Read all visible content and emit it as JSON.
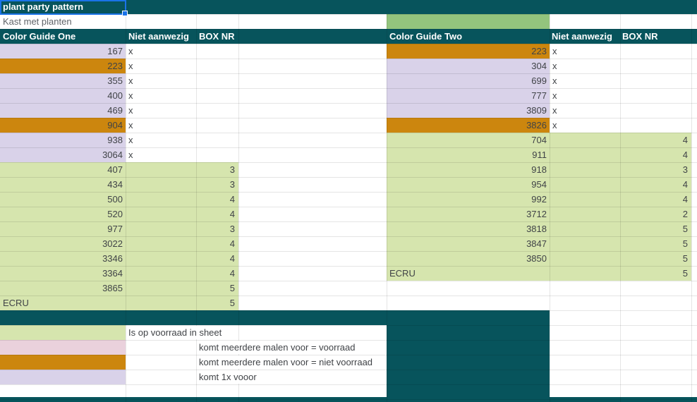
{
  "sheet": {
    "title_cell": "plant party pattern",
    "subtitle_cell": "Kast met planten"
  },
  "tables": [
    {
      "title": "Color Guide One",
      "col_absent": "Niet aanwezig",
      "col_box": "BOX NR",
      "rows": [
        {
          "code": "167",
          "swatch": "lavender",
          "absent": "x",
          "box": ""
        },
        {
          "code": "223",
          "swatch": "orange",
          "absent": "x",
          "box": ""
        },
        {
          "code": "355",
          "swatch": "lavender",
          "absent": "x",
          "box": ""
        },
        {
          "code": "400",
          "swatch": "lavender",
          "absent": "x",
          "box": ""
        },
        {
          "code": "469",
          "swatch": "lavender",
          "absent": "x",
          "box": ""
        },
        {
          "code": "904",
          "swatch": "orange",
          "absent": "x",
          "box": ""
        },
        {
          "code": "938",
          "swatch": "lavender",
          "absent": "x",
          "box": ""
        },
        {
          "code": "3064",
          "swatch": "lavender",
          "absent": "x",
          "box": ""
        },
        {
          "code": "407",
          "swatch": "green",
          "absent": "",
          "box": "3"
        },
        {
          "code": "434",
          "swatch": "green",
          "absent": "",
          "box": "3"
        },
        {
          "code": "500",
          "swatch": "green",
          "absent": "",
          "box": "4"
        },
        {
          "code": "520",
          "swatch": "green",
          "absent": "",
          "box": "4"
        },
        {
          "code": "977",
          "swatch": "green",
          "absent": "",
          "box": "3"
        },
        {
          "code": "3022",
          "swatch": "green",
          "absent": "",
          "box": "4"
        },
        {
          "code": "3346",
          "swatch": "green",
          "absent": "",
          "box": "4"
        },
        {
          "code": "3364",
          "swatch": "green",
          "absent": "",
          "box": "4"
        },
        {
          "code": "3865",
          "swatch": "green",
          "absent": "",
          "box": "5"
        },
        {
          "code": "ECRU",
          "swatch": "green",
          "absent": "",
          "box": "5"
        }
      ]
    },
    {
      "title": "Color Guide Two",
      "col_absent": "Niet aanwezig",
      "col_box": "BOX NR",
      "rows": [
        {
          "code": "223",
          "swatch": "orange",
          "absent": "x",
          "box": ""
        },
        {
          "code": "304",
          "swatch": "lavender",
          "absent": "x",
          "box": ""
        },
        {
          "code": "699",
          "swatch": "lavender",
          "absent": "x",
          "box": ""
        },
        {
          "code": "777",
          "swatch": "lavender",
          "absent": "x",
          "box": ""
        },
        {
          "code": "3809",
          "swatch": "lavender",
          "absent": "x",
          "box": ""
        },
        {
          "code": "3826",
          "swatch": "orange",
          "absent": "x",
          "box": ""
        },
        {
          "code": "704",
          "swatch": "green",
          "absent": "",
          "box": "4"
        },
        {
          "code": "911",
          "swatch": "green",
          "absent": "",
          "box": "4"
        },
        {
          "code": "918",
          "swatch": "green",
          "absent": "",
          "box": "3"
        },
        {
          "code": "954",
          "swatch": "green",
          "absent": "",
          "box": "4"
        },
        {
          "code": "992",
          "swatch": "green",
          "absent": "",
          "box": "4"
        },
        {
          "code": "3712",
          "swatch": "green",
          "absent": "",
          "box": "2"
        },
        {
          "code": "3818",
          "swatch": "green",
          "absent": "",
          "box": "5"
        },
        {
          "code": "3847",
          "swatch": "green",
          "absent": "",
          "box": "5"
        },
        {
          "code": "3850",
          "swatch": "green",
          "absent": "",
          "box": "5"
        },
        {
          "code": "ECRU",
          "swatch": "green",
          "absent": "",
          "box": "5"
        }
      ]
    }
  ],
  "legend": {
    "items": [
      {
        "swatch": "green",
        "label": "Is op voorraad in sheet"
      },
      {
        "swatch": "pink",
        "label": "komt meerdere malen voor = voorraad"
      },
      {
        "swatch": "orange",
        "label": "komt meerdere malen voor = niet voorraad"
      },
      {
        "swatch": "lavender",
        "label": "komt 1x vooor"
      }
    ]
  },
  "colors": {
    "teal": "#07545c",
    "lavender": "#d9d2e9",
    "orange": "#cc860e",
    "green": "#d6e5ae",
    "green_accent": "#93c47d",
    "pink": "#ead1dc",
    "selection": "#1a73e8",
    "text_dark": "#404347",
    "text_gray": "#5f6368"
  }
}
